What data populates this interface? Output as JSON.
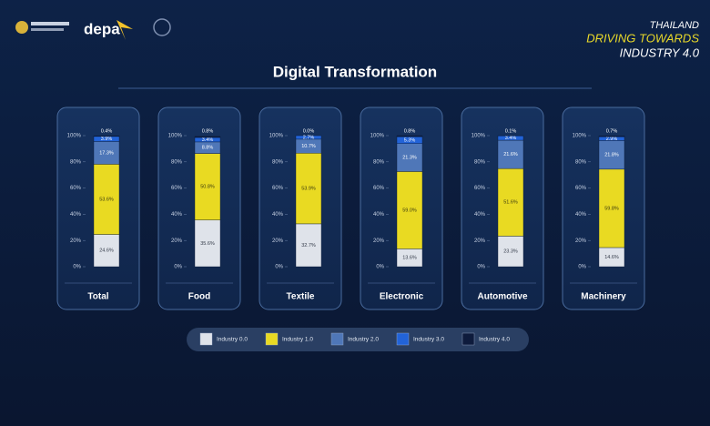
{
  "header": {
    "logo": "depa",
    "tagline": [
      "THAILAND",
      "DRIVING TOWARDS",
      "INDUSTRY 4.0"
    ]
  },
  "chart_data": {
    "type": "bar",
    "stacked": true,
    "title": "Digital Transformation",
    "categories": [
      "Total",
      "Food",
      "Textile",
      "Electronic",
      "Automotive",
      "Machinery"
    ],
    "ylim": [
      0,
      100
    ],
    "yticks": [
      {
        "value": 0,
        "label": "0%"
      },
      {
        "value": 20,
        "label": "20%"
      },
      {
        "value": 40,
        "label": "40%"
      },
      {
        "value": 60,
        "label": "60%"
      },
      {
        "value": 80,
        "label": "80%"
      },
      {
        "value": 100,
        "label": "100%"
      }
    ],
    "series": [
      {
        "name": "Industry 0.0",
        "color": "#dfe3ea",
        "values": [
          24.6,
          35.6,
          32.7,
          13.6,
          23.3,
          14.6
        ],
        "value_labels": [
          "24.6%",
          "35.6%",
          "32.7%",
          "13.6%",
          "23.3%",
          "14.6%"
        ]
      },
      {
        "name": "Industry 1.0",
        "color": "#e9da22",
        "values": [
          53.6,
          50.8,
          53.9,
          59.0,
          51.6,
          59.8
        ],
        "value_labels": [
          "53.6%",
          "50.8%",
          "53.9%",
          "59.0%",
          "51.6%",
          "59.8%"
        ]
      },
      {
        "name": "Industry 2.0",
        "color": "#4f77b8",
        "values": [
          17.3,
          8.8,
          10.7,
          21.3,
          21.6,
          21.8
        ],
        "value_labels": [
          "17.3%",
          "8.8%",
          "10.7%",
          "21.3%",
          "21.6%",
          "21.8%"
        ]
      },
      {
        "name": "Industry 3.0",
        "color": "#2263d8",
        "values": [
          3.9,
          3.4,
          2.7,
          5.3,
          3.4,
          2.9
        ],
        "value_labels": [
          "3.9%",
          "3.4%",
          "2.7%",
          "5.3%",
          "3.4%",
          "2.9%"
        ]
      },
      {
        "name": "Industry 4.0",
        "color": "#0e1b3c",
        "values": [
          0.4,
          0.8,
          0.0,
          0.8,
          0.1,
          0.7
        ],
        "value_labels": [
          "0.4%",
          "0.8%",
          "0.0%",
          "0.8%",
          "0.1%",
          "0.7%"
        ]
      }
    ]
  }
}
